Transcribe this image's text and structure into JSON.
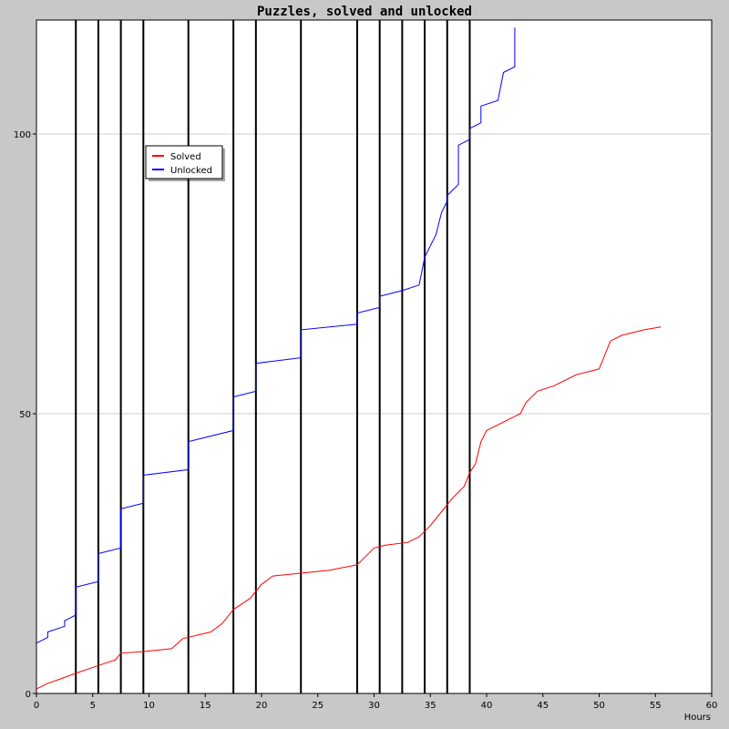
{
  "chart_data": {
    "type": "line",
    "title": "Puzzles, solved and unlocked",
    "xlabel": "Hours",
    "ylabel": "",
    "xlim": [
      0,
      60
    ],
    "ylim": [
      0,
      100
    ],
    "x_ticks": [
      0,
      5,
      10,
      15,
      20,
      25,
      30,
      35,
      40,
      45,
      50,
      55,
      60
    ],
    "y_ticks": [
      0,
      50,
      100
    ],
    "grid": {
      "horizontal": true,
      "vertical": false
    },
    "legend_position": "upper-left",
    "event_lines_x": [
      3.5,
      5.5,
      7.5,
      9.5,
      13.5,
      17.5,
      19.5,
      23.5,
      28.5,
      30.5,
      32.5,
      34.5,
      36.5,
      38.5
    ],
    "series": [
      {
        "name": "Solved",
        "color": "#ff0000",
        "points": [
          [
            0,
            0.8
          ],
          [
            1,
            1.8
          ],
          [
            2,
            2.5
          ],
          [
            3.5,
            3.6
          ],
          [
            5.5,
            5
          ],
          [
            7,
            6
          ],
          [
            7.5,
            7.2
          ],
          [
            9.5,
            7.5
          ],
          [
            12,
            8
          ],
          [
            13,
            9.8
          ],
          [
            15.5,
            11
          ],
          [
            16.5,
            12.5
          ],
          [
            17.5,
            15
          ],
          [
            19,
            17
          ],
          [
            20,
            19.5
          ],
          [
            21,
            21
          ],
          [
            23.5,
            21.5
          ],
          [
            26,
            22
          ],
          [
            28.5,
            23
          ],
          [
            30,
            26
          ],
          [
            31,
            26.5
          ],
          [
            33,
            27
          ],
          [
            34,
            28
          ],
          [
            35,
            30
          ],
          [
            36,
            32.5
          ],
          [
            37,
            35
          ],
          [
            38,
            37
          ],
          [
            38.5,
            39.5
          ],
          [
            39,
            41
          ],
          [
            39.5,
            45
          ],
          [
            40,
            47
          ],
          [
            42,
            49
          ],
          [
            43,
            50
          ],
          [
            43.5,
            52
          ],
          [
            44.5,
            54
          ],
          [
            46,
            55
          ],
          [
            48,
            57
          ],
          [
            50,
            58
          ],
          [
            51,
            63
          ],
          [
            52,
            64
          ],
          [
            54,
            65
          ],
          [
            55.5,
            65.5
          ]
        ]
      },
      {
        "name": "Unlocked",
        "color": "#0000ff",
        "points": [
          [
            0,
            9
          ],
          [
            1,
            10
          ],
          [
            1,
            11
          ],
          [
            2.5,
            12
          ],
          [
            2.5,
            13
          ],
          [
            3.5,
            14
          ],
          [
            3.5,
            19
          ],
          [
            5.5,
            20
          ],
          [
            5.5,
            25
          ],
          [
            7.5,
            26
          ],
          [
            7.5,
            33
          ],
          [
            9.5,
            34
          ],
          [
            9.5,
            39
          ],
          [
            13.5,
            40
          ],
          [
            13.5,
            45
          ],
          [
            17.5,
            47
          ],
          [
            17.5,
            53
          ],
          [
            19.5,
            54
          ],
          [
            19.5,
            59
          ],
          [
            23.5,
            60
          ],
          [
            23.5,
            65
          ],
          [
            28.5,
            66
          ],
          [
            28.5,
            68
          ],
          [
            30.5,
            69
          ],
          [
            30.5,
            71
          ],
          [
            32.5,
            72
          ],
          [
            34,
            73
          ],
          [
            34.5,
            78
          ],
          [
            35,
            80
          ],
          [
            35.5,
            82
          ],
          [
            36,
            86
          ],
          [
            36.5,
            88
          ],
          [
            36.5,
            89
          ],
          [
            37.5,
            91
          ],
          [
            37.5,
            98
          ],
          [
            38.5,
            99
          ],
          [
            38.5,
            101
          ],
          [
            39.5,
            102
          ],
          [
            39.5,
            105
          ],
          [
            41,
            106
          ],
          [
            41.5,
            111
          ],
          [
            42.5,
            112
          ],
          [
            42.5,
            119
          ]
        ]
      }
    ]
  }
}
